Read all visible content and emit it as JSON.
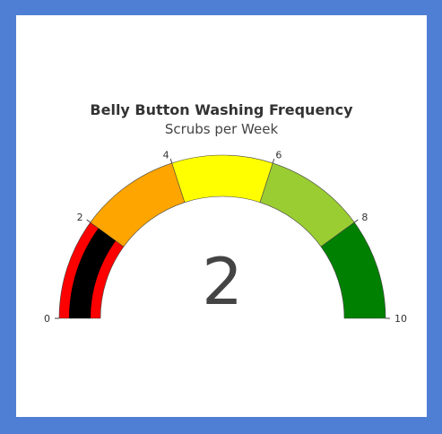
{
  "chart_data": {
    "type": "gauge",
    "title": "Belly Button Washing Frequency",
    "subtitle": "Scrubs per Week",
    "value": 2,
    "range": [
      0,
      10
    ],
    "ticks": [
      0,
      2,
      4,
      6,
      8,
      10
    ],
    "tick_labels": [
      "0",
      "2",
      "4",
      "6",
      "8",
      "10"
    ],
    "bands": [
      {
        "from": 0,
        "to": 2,
        "color": "#ff0000"
      },
      {
        "from": 2,
        "to": 4,
        "color": "#ffa500"
      },
      {
        "from": 4,
        "to": 6,
        "color": "#ffff00"
      },
      {
        "from": 6,
        "to": 8,
        "color": "#9acd32"
      },
      {
        "from": 8,
        "to": 10,
        "color": "#008000"
      }
    ],
    "bar_color": "#000000",
    "value_text": "2"
  }
}
